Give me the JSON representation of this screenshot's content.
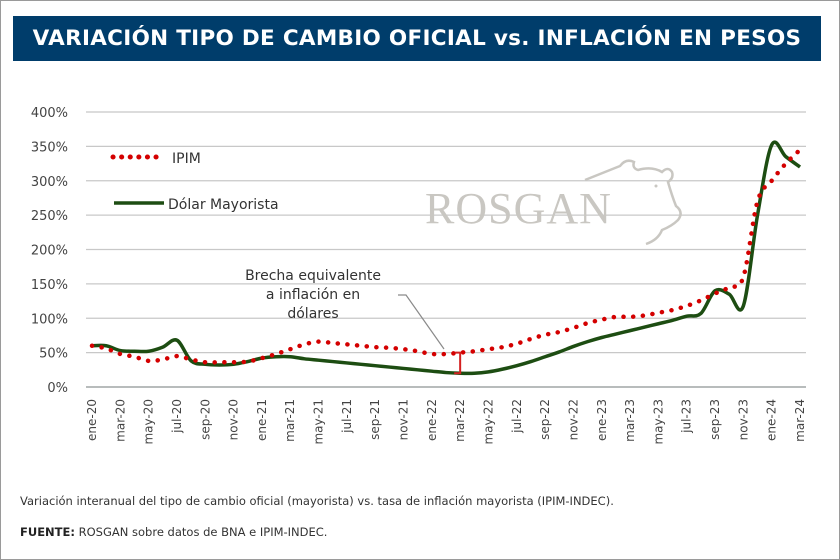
{
  "header": {
    "title": "VARIACIÓN TIPO DE CAMBIO OFICIAL vs. INFLACIÓN EN PESOS"
  },
  "watermark": {
    "text": "ROSGAN",
    "icon": "bull-head-icon"
  },
  "annotation": {
    "lines": [
      "Brecha equivalente",
      "a inflación en",
      "dólares"
    ],
    "month": "mar-22"
  },
  "footer": {
    "caption": "Variación interanual del tipo de cambio oficial (mayorista) vs. tasa de inflación mayorista (IPIM-INDEC).",
    "source_label": "FUENTE:",
    "source_text": " ROSGAN sobre datos de BNA e IPIM-INDEC."
  },
  "colors": {
    "title_bg": "#003d6b",
    "ipim": "#d40000",
    "dolar": "#1d4d12",
    "grid": "#c8c8c8",
    "brace": "#d42020"
  },
  "chart_data": {
    "type": "line",
    "title": "VARIACIÓN TIPO DE CAMBIO OFICIAL vs. INFLACIÓN EN PESOS",
    "xlabel": "",
    "ylabel": "",
    "ylim": [
      0,
      400
    ],
    "yticks": [
      0,
      50,
      100,
      150,
      200,
      250,
      300,
      350,
      400
    ],
    "ytick_labels": [
      "0%",
      "50%",
      "100%",
      "150%",
      "200%",
      "250%",
      "300%",
      "350%",
      "400%"
    ],
    "grid": true,
    "legend": "top-left",
    "x_tick_labels": [
      "ene-20",
      "mar-20",
      "may-20",
      "jul-20",
      "sep-20",
      "nov-20",
      "ene-21",
      "mar-21",
      "may-21",
      "jul-21",
      "sep-21",
      "nov-21",
      "ene-22",
      "mar-22",
      "may-22",
      "jul-22",
      "sep-22",
      "nov-22",
      "ene-23",
      "mar-23",
      "may-23",
      "jul-23",
      "sep-23",
      "nov-23",
      "ene-24",
      "mar-24"
    ],
    "x": [
      "ene-20",
      "feb-20",
      "mar-20",
      "abr-20",
      "may-20",
      "jun-20",
      "jul-20",
      "ago-20",
      "sep-20",
      "oct-20",
      "nov-20",
      "dic-20",
      "ene-21",
      "feb-21",
      "mar-21",
      "abr-21",
      "may-21",
      "jun-21",
      "jul-21",
      "ago-21",
      "sep-21",
      "oct-21",
      "nov-21",
      "dic-21",
      "ene-22",
      "feb-22",
      "mar-22",
      "abr-22",
      "may-22",
      "jun-22",
      "jul-22",
      "ago-22",
      "sep-22",
      "oct-22",
      "nov-22",
      "dic-22",
      "ene-23",
      "feb-23",
      "mar-23",
      "abr-23",
      "may-23",
      "jun-23",
      "jul-23",
      "ago-23",
      "sep-23",
      "oct-23",
      "nov-23",
      "dic-23",
      "ene-24",
      "feb-24",
      "mar-24"
    ],
    "series": [
      {
        "name": "IPIM",
        "style": "dotted",
        "values": [
          60,
          56,
          48,
          44,
          38,
          40,
          45,
          40,
          36,
          36,
          36,
          37,
          42,
          48,
          55,
          62,
          66,
          64,
          62,
          60,
          58,
          57,
          55,
          52,
          48,
          48,
          50,
          52,
          55,
          58,
          63,
          70,
          76,
          80,
          86,
          93,
          98,
          102,
          102,
          104,
          108,
          112,
          118,
          126,
          136,
          145,
          160,
          270,
          300,
          325,
          345
        ]
      },
      {
        "name": "Dólar Mayorista",
        "style": "solid",
        "values": [
          60,
          60,
          53,
          52,
          52,
          58,
          68,
          38,
          33,
          32,
          33,
          37,
          42,
          44,
          44,
          41,
          39,
          37,
          35,
          33,
          31,
          29,
          27,
          25,
          23,
          21,
          20,
          20,
          22,
          26,
          31,
          37,
          44,
          51,
          59,
          66,
          72,
          77,
          82,
          87,
          92,
          97,
          103,
          107,
          140,
          135,
          118,
          250,
          352,
          335,
          320
        ]
      }
    ]
  }
}
